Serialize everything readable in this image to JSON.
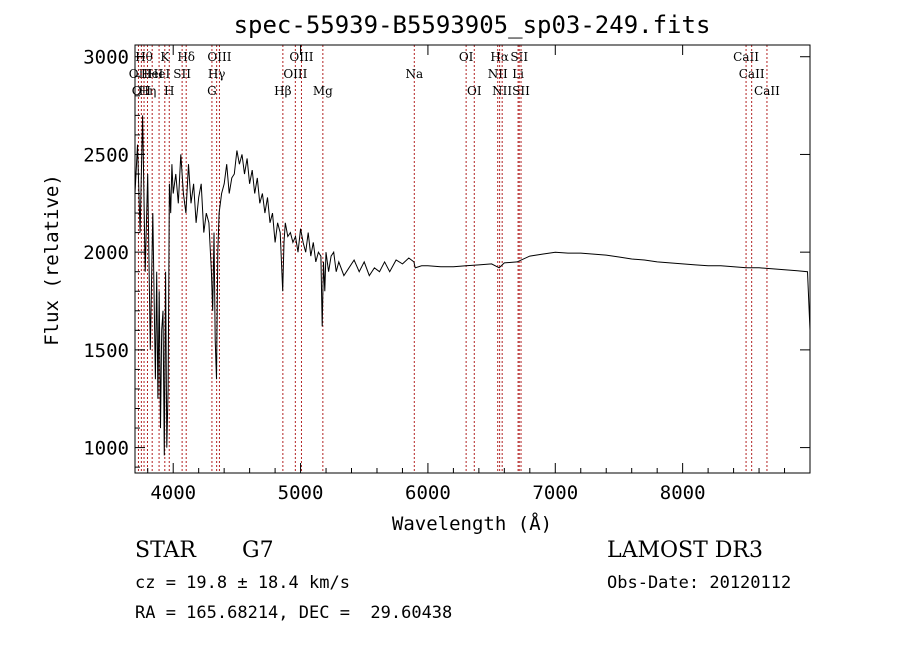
{
  "chart_data": {
    "type": "line",
    "title": "spec-55939-B5593905_sp03-249.fits",
    "xlabel": "Wavelength (Å)",
    "ylabel": "Flux (relative)",
    "xlim": [
      3700,
      9000
    ],
    "ylim": [
      870,
      3060
    ],
    "x_ticks": [
      4000,
      5000,
      6000,
      7000,
      8000
    ],
    "y_ticks": [
      1000,
      1500,
      2000,
      2500,
      3000
    ],
    "grid": false,
    "series": [
      {
        "color": "#000000",
        "x": [
          3700,
          3720,
          3740,
          3760,
          3780,
          3800,
          3820,
          3840,
          3860,
          3870,
          3880,
          3890,
          3900,
          3910,
          3920,
          3930,
          3940,
          3950,
          3960,
          3970,
          3980,
          3990,
          4000,
          4020,
          4040,
          4060,
          4080,
          4100,
          4120,
          4140,
          4160,
          4180,
          4200,
          4220,
          4240,
          4260,
          4280,
          4300,
          4310,
          4320,
          4330,
          4340,
          4350,
          4360,
          4380,
          4400,
          4420,
          4440,
          4460,
          4480,
          4500,
          4520,
          4540,
          4560,
          4580,
          4600,
          4620,
          4640,
          4660,
          4680,
          4700,
          4720,
          4740,
          4760,
          4780,
          4800,
          4820,
          4840,
          4860,
          4870,
          4880,
          4900,
          4920,
          4940,
          4960,
          4980,
          5000,
          5020,
          5040,
          5060,
          5080,
          5100,
          5120,
          5140,
          5160,
          5170,
          5180,
          5190,
          5200,
          5220,
          5240,
          5260,
          5280,
          5300,
          5340,
          5380,
          5420,
          5460,
          5500,
          5540,
          5580,
          5620,
          5660,
          5700,
          5750,
          5800,
          5850,
          5890,
          5900,
          5950,
          6000,
          6100,
          6200,
          6300,
          6400,
          6500,
          6560,
          6600,
          6700,
          6800,
          6900,
          7000,
          7100,
          7200,
          7300,
          7400,
          7500,
          7600,
          7700,
          7800,
          7900,
          8000,
          8100,
          8200,
          8300,
          8400,
          8500,
          8600,
          8700,
          8800,
          8900,
          8980,
          9000
        ],
        "y": [
          2300,
          2550,
          2100,
          2700,
          1900,
          2400,
          1500,
          2200,
          1350,
          1900,
          1250,
          1800,
          1100,
          1600,
          1700,
          960,
          1900,
          1000,
          1300,
          2350,
          2200,
          2450,
          2300,
          2400,
          2250,
          2500,
          2300,
          2200,
          2450,
          2250,
          2350,
          2150,
          2280,
          2350,
          2100,
          2200,
          2150,
          1900,
          1700,
          2100,
          1550,
          1350,
          2000,
          2200,
          2300,
          2350,
          2450,
          2300,
          2380,
          2400,
          2520,
          2450,
          2500,
          2400,
          2480,
          2350,
          2420,
          2300,
          2380,
          2250,
          2300,
          2200,
          2280,
          2150,
          2200,
          2050,
          2150,
          2100,
          1800,
          2050,
          2150,
          2080,
          2100,
          2050,
          2080,
          2000,
          2120,
          2050,
          2000,
          2100,
          1980,
          2050,
          1950,
          2000,
          1980,
          1620,
          1950,
          1800,
          2000,
          1900,
          1980,
          2000,
          1900,
          1950,
          1880,
          1920,
          1960,
          1900,
          1950,
          1880,
          1920,
          1900,
          1950,
          1900,
          1960,
          1940,
          1970,
          1950,
          1920,
          1930,
          1930,
          1925,
          1925,
          1930,
          1935,
          1940,
          1920,
          1945,
          1950,
          1980,
          1990,
          2000,
          1995,
          1995,
          1990,
          1985,
          1975,
          1965,
          1960,
          1950,
          1945,
          1940,
          1935,
          1930,
          1930,
          1925,
          1920,
          1920,
          1915,
          1910,
          1905,
          1900,
          1600
        ]
      }
    ],
    "lines": [
      {
        "x": 3727,
        "label": "OII",
        "row": 1
      },
      {
        "x": 3750,
        "label": "OII",
        "row": 2
      },
      {
        "x": 3771,
        "label": "Hθ",
        "row": 0
      },
      {
        "x": 3798,
        "label": "Hη",
        "row": 2
      },
      {
        "x": 3835,
        "label": "HeI",
        "row": 1
      },
      {
        "x": 3889,
        "label": "HeI",
        "row": 1
      },
      {
        "x": 3934,
        "label": "K",
        "row": 0
      },
      {
        "x": 3969,
        "label": "H",
        "row": 2
      },
      {
        "x": 4070,
        "label": "SII",
        "row": 1
      },
      {
        "x": 4102,
        "label": "Hδ",
        "row": 0
      },
      {
        "x": 4304,
        "label": "G",
        "row": 2
      },
      {
        "x": 4341,
        "label": "Hγ",
        "row": 1
      },
      {
        "x": 4363,
        "label": "OIII",
        "row": 0
      },
      {
        "x": 4861,
        "label": "Hβ",
        "row": 2
      },
      {
        "x": 4959,
        "label": "OIII",
        "row": 1
      },
      {
        "x": 5007,
        "label": "OIII",
        "row": 0
      },
      {
        "x": 5175,
        "label": "Mg",
        "row": 2
      },
      {
        "x": 5893,
        "label": "Na",
        "row": 1
      },
      {
        "x": 6300,
        "label": "OI",
        "row": 0
      },
      {
        "x": 6364,
        "label": "OI",
        "row": 2
      },
      {
        "x": 6548,
        "label": "NII",
        "row": 1
      },
      {
        "x": 6563,
        "label": "Hα",
        "row": 0
      },
      {
        "x": 6583,
        "label": "NII",
        "row": 2
      },
      {
        "x": 6708,
        "label": "Li",
        "row": 1
      },
      {
        "x": 6717,
        "label": "SII",
        "row": 0
      },
      {
        "x": 6731,
        "label": "SII",
        "row": 2
      },
      {
        "x": 8498,
        "label": "CaII",
        "row": 0
      },
      {
        "x": 8542,
        "label": "CaII",
        "row": 1
      },
      {
        "x": 8662,
        "label": "CaII",
        "row": 2
      }
    ]
  },
  "info": {
    "class_label": "STAR",
    "subclass": "G7",
    "cz": "cz = 19.8 ± 18.4 km/s",
    "coords": "RA = 165.68214, DEC =  29.60438",
    "survey": "LAMOST DR3",
    "obs_date": "Obs-Date: 20120112"
  }
}
